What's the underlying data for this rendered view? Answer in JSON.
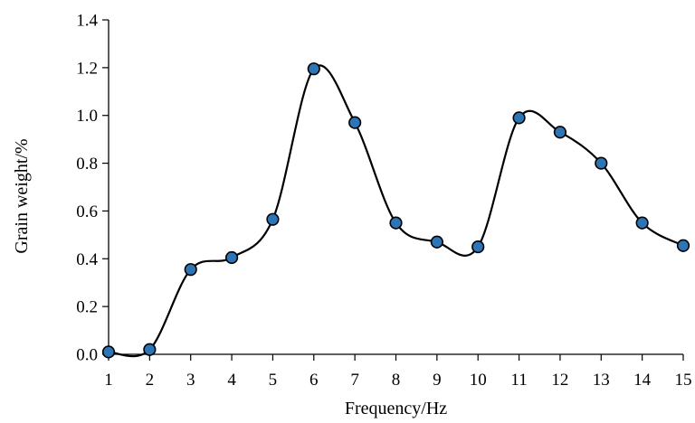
{
  "chart_data": {
    "type": "line",
    "smooth": true,
    "xlabel": "Frequency/Hz",
    "ylabel": "Grain weight/%",
    "x": [
      1,
      2,
      3,
      4,
      5,
      6,
      7,
      8,
      9,
      10,
      11,
      12,
      13,
      14,
      15
    ],
    "series": [
      {
        "values": [
          0.01,
          0.02,
          0.355,
          0.405,
          0.565,
          1.195,
          0.97,
          0.55,
          0.47,
          0.45,
          0.99,
          0.93,
          0.8,
          0.55,
          0.455
        ]
      }
    ],
    "xlim": [
      1,
      15
    ],
    "ylim": [
      0.0,
      1.4
    ],
    "x_ticks": [
      "1",
      "2",
      "3",
      "4",
      "5",
      "6",
      "7",
      "8",
      "9",
      "10",
      "11",
      "12",
      "13",
      "14",
      "15"
    ],
    "y_ticks": [
      "0.0",
      "0.2",
      "0.4",
      "0.6",
      "0.8",
      "1.0",
      "1.2",
      "1.4"
    ],
    "grid": false,
    "legend": "none",
    "colors": {
      "line": "#000000",
      "marker_fill": "#2E75B6",
      "marker_stroke": "#000000",
      "axis": "#000000"
    }
  }
}
